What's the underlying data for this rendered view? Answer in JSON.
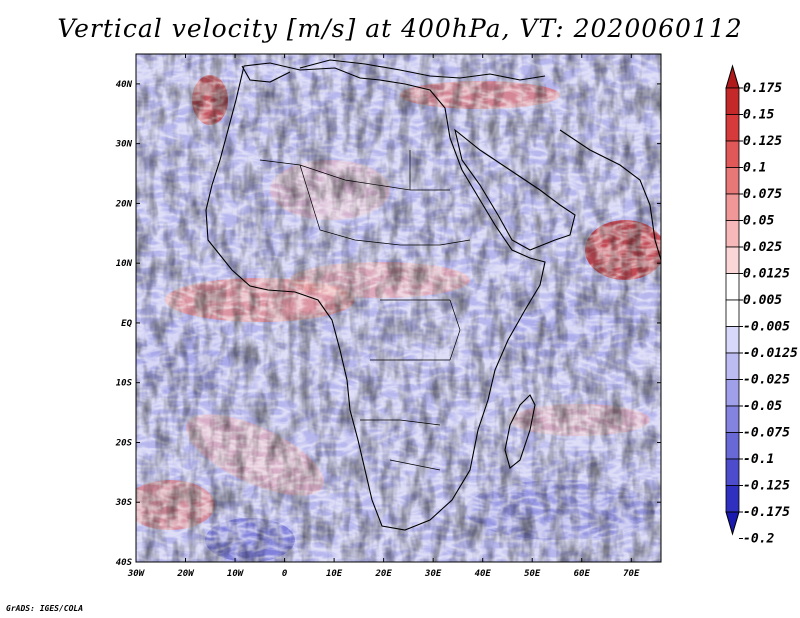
{
  "title": "Vertical velocity [m/s] at 400hPa, VT: 2020060112",
  "footer": "GrADS: IGES/COLA",
  "map": {
    "lon_range": [
      -30,
      76
    ],
    "lat_range": [
      -40,
      45
    ],
    "lat_labels": [
      "40N",
      "30N",
      "20N",
      "10N",
      "EQ",
      "10S",
      "20S",
      "30S",
      "40S"
    ],
    "lat_values": [
      40,
      30,
      20,
      10,
      0,
      -10,
      -20,
      -30,
      -40
    ],
    "lon_labels": [
      "30W",
      "20W",
      "10W",
      "0",
      "10E",
      "20E",
      "30E",
      "40E",
      "50E",
      "60E",
      "70E"
    ],
    "lon_values": [
      -30,
      -20,
      -10,
      0,
      10,
      20,
      30,
      40,
      50,
      60,
      70
    ]
  },
  "colorbar": {
    "labels": [
      "0.175",
      "0.15",
      "0.125",
      "0.1",
      "0.075",
      "0.05",
      "0.025",
      "0.0125",
      "0.005",
      "-0.005",
      "-0.0125",
      "-0.025",
      "-0.05",
      "-0.075",
      "-0.1",
      "-0.125",
      "-0.175",
      "-0.2"
    ],
    "colors": [
      "#b01a1a",
      "#c42828",
      "#d63a3a",
      "#e05858",
      "#e87878",
      "#f09898",
      "#f6b8b8",
      "#fbd6d6",
      "#ffffff",
      "#ffffff",
      "#d8d8fa",
      "#bcbcf2",
      "#a0a0ea",
      "#8484e0",
      "#6868d6",
      "#4c4ccc",
      "#3030c0",
      "#1a1ab0"
    ]
  }
}
